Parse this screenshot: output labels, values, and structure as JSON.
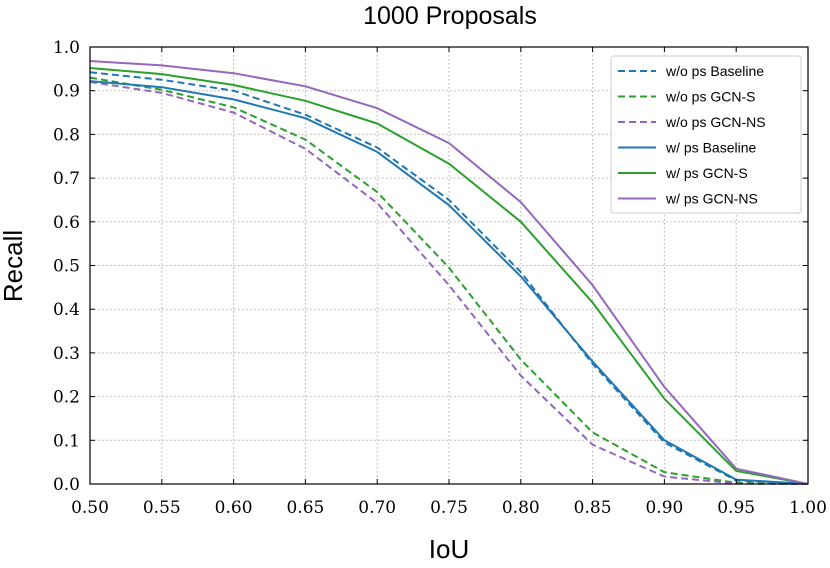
{
  "chart_data": {
    "type": "line",
    "title": "1000 Proposals",
    "xlabel": "IoU",
    "ylabel": "Recall",
    "xlim": [
      0.5,
      1.0
    ],
    "ylim": [
      0.0,
      1.0
    ],
    "grid": true,
    "legend_position": "top-right",
    "x": [
      0.5,
      0.55,
      0.6,
      0.65,
      0.7,
      0.75,
      0.8,
      0.85,
      0.9,
      0.95,
      1.0
    ],
    "xticks": [
      "0.50",
      "0.55",
      "0.60",
      "0.65",
      "0.70",
      "0.75",
      "0.80",
      "0.85",
      "0.90",
      "0.95",
      "1.00"
    ],
    "yticks": [
      "0.0",
      "0.1",
      "0.2",
      "0.3",
      "0.4",
      "0.5",
      "0.6",
      "0.7",
      "0.8",
      "0.9",
      "1.0"
    ],
    "series": [
      {
        "name": "w/o ps Baseline",
        "color": "#1f77b4",
        "style": "dashed",
        "values": [
          0.942,
          0.925,
          0.9,
          0.845,
          0.77,
          0.65,
          0.485,
          0.275,
          0.095,
          0.008,
          0.0
        ]
      },
      {
        "name": "w/o ps GCN-S",
        "color": "#2ca02c",
        "style": "dashed",
        "values": [
          0.93,
          0.902,
          0.862,
          0.788,
          0.668,
          0.495,
          0.285,
          0.118,
          0.027,
          0.003,
          0.0
        ]
      },
      {
        "name": "w/o ps GCN-NS",
        "color": "#9467bd",
        "style": "dashed",
        "values": [
          0.92,
          0.895,
          0.85,
          0.767,
          0.643,
          0.455,
          0.248,
          0.09,
          0.017,
          0.001,
          0.0
        ]
      },
      {
        "name": "w/ ps Baseline",
        "color": "#1f77b4",
        "style": "solid",
        "values": [
          0.922,
          0.908,
          0.88,
          0.837,
          0.76,
          0.638,
          0.475,
          0.28,
          0.1,
          0.01,
          0.0
        ]
      },
      {
        "name": "w/ ps GCN-S",
        "color": "#2ca02c",
        "style": "solid",
        "values": [
          0.952,
          0.938,
          0.913,
          0.877,
          0.825,
          0.733,
          0.6,
          0.415,
          0.195,
          0.03,
          0.0
        ]
      },
      {
        "name": "w/ ps GCN-NS",
        "color": "#9467bd",
        "style": "solid",
        "values": [
          0.968,
          0.958,
          0.94,
          0.91,
          0.86,
          0.78,
          0.645,
          0.455,
          0.222,
          0.035,
          0.0
        ]
      }
    ]
  }
}
